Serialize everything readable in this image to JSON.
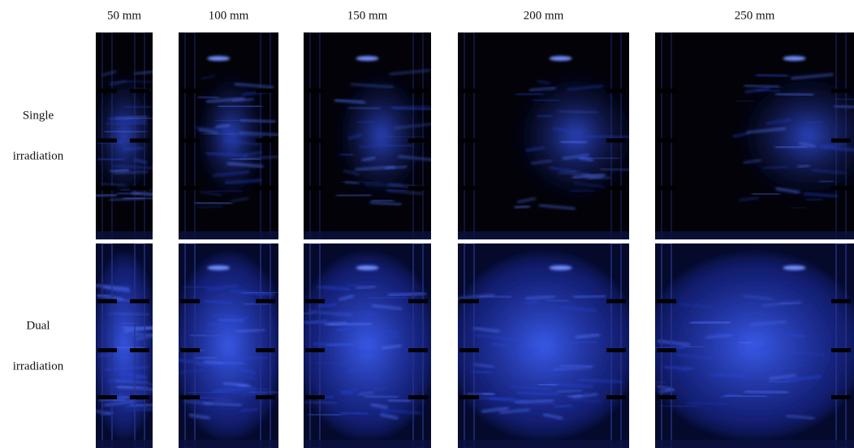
{
  "columns": [
    "50 mm",
    "100 mm",
    "150 mm",
    "200 mm",
    "250 mm"
  ],
  "rows": [
    {
      "label_lines": [
        "Single",
        "irradiation"
      ]
    },
    {
      "label_lines": [
        "Dual",
        "irradiation"
      ]
    }
  ]
}
